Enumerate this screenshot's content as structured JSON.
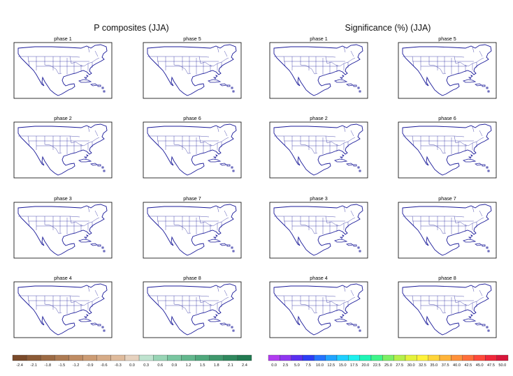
{
  "titles": {
    "left": "P composites (JJA)",
    "right": "Significance (%) (JJA)"
  },
  "phase_labels": [
    "phase 1",
    "phase 2",
    "phase 3",
    "phase 4",
    "phase 5",
    "phase 6",
    "phase 7",
    "phase 8"
  ],
  "precip_colorbar": {
    "ticks": [
      "-2.4",
      "-2.1",
      "-1.8",
      "-1.5",
      "-1.2",
      "-0.9",
      "-0.6",
      "-0.3",
      "0.0",
      "0.3",
      "0.6",
      "0.9",
      "1.2",
      "1.5",
      "1.8",
      "2.1",
      "2.4"
    ],
    "colors": [
      "#7a4a2a",
      "#8b5a36",
      "#9c6a44",
      "#ad7b53",
      "#bf8c63",
      "#cc9c74",
      "#d6ab87",
      "#dfbb9c",
      "#e6d2bf",
      "#bfe3cf",
      "#98d5b5",
      "#79c6a0",
      "#63b78d",
      "#4fa87c",
      "#3f986c",
      "#2f885d",
      "#227a51"
    ]
  },
  "sig_colorbar": {
    "ticks": [
      "0.0",
      "2.5",
      "5.0",
      "7.5",
      "10.0",
      "12.5",
      "15.0",
      "17.5",
      "20.0",
      "22.5",
      "25.0",
      "27.5",
      "30.0",
      "32.5",
      "35.0",
      "37.5",
      "40.0",
      "42.5",
      "45.0",
      "47.5",
      "50.0"
    ],
    "colors": [
      "#b13cf0",
      "#8f36f0",
      "#5a2ff0",
      "#2c3df5",
      "#2573ff",
      "#21a4ff",
      "#1fcfff",
      "#1ef0ee",
      "#1ff5b6",
      "#3ff58a",
      "#7df064",
      "#b5f04a",
      "#e4f23c",
      "#fff23a",
      "#ffd53a",
      "#ffb43a",
      "#ff913a",
      "#ff6e3a",
      "#ff4a3a",
      "#f0283a",
      "#d8163a"
    ]
  },
  "map_style": {
    "border_color": "#1a1a99",
    "ocean_color": "#ffffff"
  },
  "panel_modes": {
    "composite_field": "precip",
    "significance_field": "significance"
  }
}
